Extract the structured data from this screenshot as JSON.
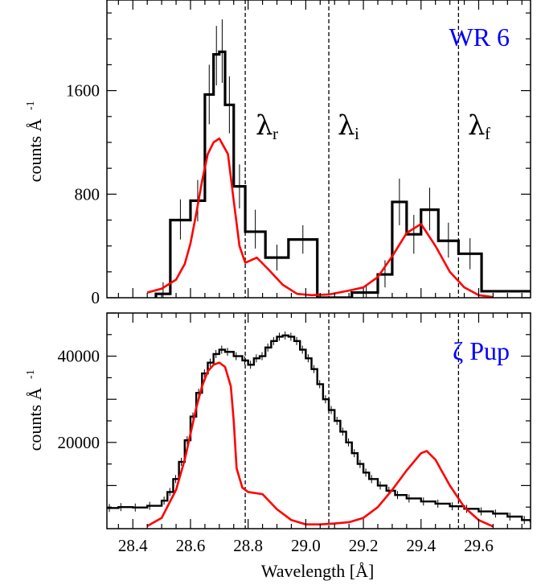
{
  "colors": {
    "model": "#ff0000",
    "label": "#0000ff",
    "data": "#000000"
  },
  "shared_x": {
    "xlim": [
      28.31,
      29.78
    ],
    "xlabel": "Wavelength [Å]",
    "ticks": [
      "28.4",
      "28.6",
      "28.8",
      "29.0",
      "29.2",
      "29.4",
      "29.6"
    ]
  },
  "chart_data": [
    {
      "type": "line",
      "panel_label": "WR 6",
      "ylabel": "counts Å",
      "ylabel_sup": "-1",
      "ylim": [
        0,
        2300
      ],
      "yticks": [
        "0",
        "800",
        "1600"
      ],
      "grid": false,
      "line_markers": [
        {
          "x": 28.79,
          "label": "λ",
          "sub": "r"
        },
        {
          "x": 29.08,
          "label": "λ",
          "sub": "i"
        },
        {
          "x": 29.53,
          "label": "λ",
          "sub": "f"
        }
      ],
      "series": [
        {
          "style": "histogram",
          "bins": [
            {
              "lo": 28.48,
              "hi": 28.53,
              "y": 30
            },
            {
              "lo": 28.53,
              "hi": 28.6,
              "y": 600
            },
            {
              "lo": 28.6,
              "hi": 28.65,
              "y": 750
            },
            {
              "lo": 28.65,
              "hi": 28.68,
              "y": 1570
            },
            {
              "lo": 28.68,
              "hi": 28.7,
              "y": 1880
            },
            {
              "lo": 28.7,
              "hi": 28.72,
              "y": 1900
            },
            {
              "lo": 28.72,
              "hi": 28.75,
              "y": 1490
            },
            {
              "lo": 28.75,
              "hi": 28.79,
              "y": 860
            },
            {
              "lo": 28.79,
              "hi": 28.86,
              "y": 510
            },
            {
              "lo": 28.86,
              "hi": 28.94,
              "y": 310
            },
            {
              "lo": 28.94,
              "hi": 29.04,
              "y": 450
            },
            {
              "lo": 29.04,
              "hi": 29.16,
              "y": 0
            },
            {
              "lo": 29.16,
              "hi": 29.25,
              "y": 40
            },
            {
              "lo": 29.25,
              "hi": 29.3,
              "y": 180
            },
            {
              "lo": 29.3,
              "hi": 29.35,
              "y": 740
            },
            {
              "lo": 29.35,
              "hi": 29.4,
              "y": 490
            },
            {
              "lo": 29.4,
              "hi": 29.46,
              "y": 680
            },
            {
              "lo": 29.46,
              "hi": 29.53,
              "y": 440
            },
            {
              "lo": 29.53,
              "hi": 29.61,
              "y": 340
            },
            {
              "lo": 29.61,
              "hi": 29.68,
              "y": 50
            },
            {
              "lo": 29.68,
              "hi": 29.78,
              "y": 50
            }
          ],
          "error_bars": [
            {
              "x": 28.505,
              "lo": 0,
              "hi": 120
            },
            {
              "x": 28.565,
              "lo": 450,
              "hi": 760
            },
            {
              "x": 28.625,
              "lo": 590,
              "hi": 910
            },
            {
              "x": 28.665,
              "lo": 1340,
              "hi": 1800
            },
            {
              "x": 28.69,
              "lo": 1640,
              "hi": 2100
            },
            {
              "x": 28.71,
              "lo": 1660,
              "hi": 2150
            },
            {
              "x": 28.735,
              "lo": 1270,
              "hi": 1710
            },
            {
              "x": 28.77,
              "lo": 690,
              "hi": 1030
            },
            {
              "x": 28.825,
              "lo": 380,
              "hi": 680
            },
            {
              "x": 28.9,
              "lo": 210,
              "hi": 410
            },
            {
              "x": 28.99,
              "lo": 340,
              "hi": 560
            },
            {
              "x": 29.21,
              "lo": 0,
              "hi": 100
            },
            {
              "x": 29.275,
              "lo": 80,
              "hi": 290
            },
            {
              "x": 29.325,
              "lo": 560,
              "hi": 920
            },
            {
              "x": 29.375,
              "lo": 340,
              "hi": 640
            },
            {
              "x": 29.43,
              "lo": 520,
              "hi": 850
            },
            {
              "x": 29.495,
              "lo": 310,
              "hi": 580
            },
            {
              "x": 29.57,
              "lo": 220,
              "hi": 460
            }
          ]
        },
        {
          "style": "model",
          "x": [
            28.45,
            28.5,
            28.55,
            28.58,
            28.6,
            28.62,
            28.64,
            28.66,
            28.68,
            28.7,
            28.73,
            28.75,
            28.77,
            28.79,
            28.83,
            28.87,
            28.92,
            28.97,
            29.02,
            29.08,
            29.15,
            29.2,
            29.25,
            29.3,
            29.35,
            29.4,
            29.45,
            29.5,
            29.55,
            29.6,
            29.65
          ],
          "y": [
            40,
            70,
            140,
            260,
            420,
            650,
            900,
            1110,
            1200,
            1230,
            1110,
            750,
            400,
            270,
            310,
            220,
            100,
            30,
            20,
            25,
            55,
            80,
            160,
            320,
            500,
            570,
            400,
            200,
            80,
            20,
            5
          ]
        }
      ]
    },
    {
      "type": "line",
      "panel_label": "ζ Pup",
      "ylabel": "counts Å",
      "ylabel_sup": "-1",
      "ylim": [
        0,
        50000
      ],
      "yticks": [
        "20000",
        "40000"
      ],
      "grid": false,
      "line_markers": [
        {
          "x": 28.79
        },
        {
          "x": 29.08
        },
        {
          "x": 29.53
        }
      ],
      "series": [
        {
          "style": "histogram",
          "x": [
            28.31,
            28.35,
            28.4,
            28.45,
            28.5,
            28.52,
            28.54,
            28.56,
            28.58,
            28.6,
            28.62,
            28.64,
            28.66,
            28.68,
            28.7,
            28.72,
            28.75,
            28.78,
            28.8,
            28.82,
            28.84,
            28.86,
            28.88,
            28.9,
            28.92,
            28.94,
            28.96,
            28.98,
            29.0,
            29.02,
            29.04,
            29.06,
            29.08,
            29.1,
            29.12,
            29.14,
            29.16,
            29.18,
            29.2,
            29.22,
            29.25,
            29.28,
            29.31,
            29.35,
            29.4,
            29.45,
            29.5,
            29.55,
            29.6,
            29.65,
            29.7,
            29.75,
            29.78
          ],
          "y": [
            4800,
            5000,
            4900,
            5300,
            6500,
            8500,
            11500,
            15500,
            20500,
            26000,
            31500,
            36000,
            38500,
            40500,
            41500,
            41000,
            40000,
            39000,
            38000,
            39500,
            40000,
            42000,
            43500,
            44500,
            44800,
            44500,
            43500,
            41500,
            39500,
            37000,
            33500,
            30000,
            27500,
            25000,
            22500,
            20000,
            17500,
            15000,
            13000,
            11500,
            10000,
            8800,
            7800,
            7000,
            6300,
            5800,
            5200,
            4600,
            4000,
            3500,
            2800,
            2000,
            1500
          ]
        },
        {
          "style": "model",
          "x": [
            28.45,
            28.5,
            28.55,
            28.58,
            28.6,
            28.62,
            28.64,
            28.66,
            28.68,
            28.7,
            28.72,
            28.74,
            28.75,
            28.76,
            28.78,
            28.8,
            28.85,
            28.9,
            28.95,
            29.0,
            29.05,
            29.1,
            29.15,
            29.2,
            29.25,
            29.3,
            29.35,
            29.4,
            29.42,
            29.45,
            29.5,
            29.55,
            29.6,
            29.65
          ],
          "y": [
            600,
            2500,
            9000,
            16000,
            22000,
            28000,
            33000,
            36500,
            38000,
            38500,
            37500,
            33000,
            25000,
            14000,
            9500,
            8500,
            8000,
            4500,
            2000,
            1000,
            1000,
            1200,
            1500,
            2500,
            5000,
            9000,
            13500,
            17500,
            18000,
            16000,
            10000,
            5000,
            2000,
            500
          ]
        }
      ]
    }
  ]
}
